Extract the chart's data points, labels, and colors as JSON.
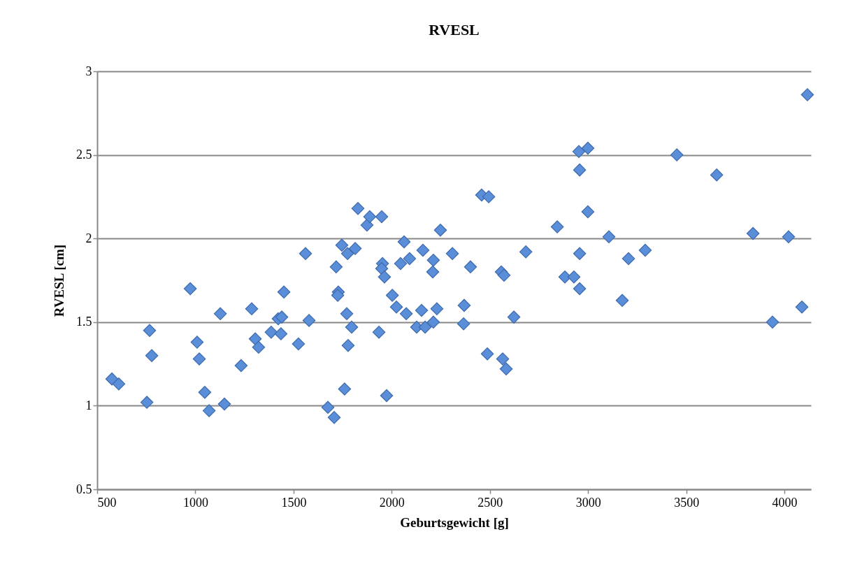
{
  "chart_data": {
    "type": "scatter",
    "title": "RVESL",
    "xlabel": "Geburtsgewicht [g]",
    "ylabel": "RVESL [cm]",
    "xlim": [
      500,
      4135
    ],
    "xticks": [
      500,
      1000,
      1500,
      2000,
      2500,
      3000,
      3500,
      4000
    ],
    "ylim": [
      0.5,
      3
    ],
    "yticks": [
      0.5,
      1,
      1.5,
      2,
      2.5,
      3
    ],
    "grid": "y",
    "marker": "diamond",
    "series": [
      {
        "color": "#5a8ed8",
        "x": [
          575,
          610,
          753,
          767,
          778,
          974,
          1009,
          1020,
          1048,
          1070,
          1148,
          1127,
          1233,
          1287,
          1305,
          1322,
          1386,
          1422,
          1440,
          1436,
          1451,
          1525,
          1561,
          1579,
          1675,
          1707,
          1717,
          1728,
          1725,
          1746,
          1771,
          1775,
          1778,
          1760,
          1796,
          1814,
          1828,
          1874,
          1888,
          1949,
          1953,
          1949,
          1963,
          1935,
          1974,
          2003,
          2024,
          2074,
          2045,
          2091,
          2063,
          2159,
          2212,
          2209,
          2152,
          2230,
          2127,
          2170,
          2212,
          2248,
          2309,
          2401,
          2369,
          2366,
          2458,
          2494,
          2487,
          2558,
          2572,
          2565,
          2583,
          2622,
          2683,
          2843,
          2882,
          2928,
          2953,
          2957,
          2957,
          2957,
          2999,
          2999,
          3106,
          3174,
          3206,
          3291,
          3452,
          3655,
          3840,
          3939,
          4021,
          4089,
          4117
        ],
        "values": [
          1.16,
          1.13,
          1.02,
          1.45,
          1.3,
          1.7,
          1.38,
          1.28,
          1.08,
          0.97,
          1.01,
          1.55,
          1.24,
          1.58,
          1.4,
          1.35,
          1.44,
          1.52,
          1.53,
          1.43,
          1.68,
          1.37,
          1.91,
          1.51,
          0.99,
          0.93,
          1.83,
          1.68,
          1.66,
          1.96,
          1.55,
          1.91,
          1.36,
          1.1,
          1.47,
          1.94,
          2.18,
          2.08,
          2.13,
          2.13,
          1.85,
          1.82,
          1.77,
          1.44,
          1.06,
          1.66,
          1.59,
          1.55,
          1.85,
          1.88,
          1.98,
          1.93,
          1.87,
          1.8,
          1.57,
          1.58,
          1.47,
          1.47,
          1.5,
          2.05,
          1.91,
          1.83,
          1.6,
          1.49,
          2.26,
          2.25,
          1.31,
          1.8,
          1.78,
          1.28,
          1.22,
          1.53,
          1.92,
          2.07,
          1.77,
          1.77,
          2.52,
          2.41,
          1.91,
          1.7,
          2.54,
          2.16,
          2.01,
          1.63,
          1.88,
          1.93,
          2.5,
          2.38,
          2.03,
          1.5,
          2.01,
          1.59,
          2.86
        ]
      }
    ]
  }
}
